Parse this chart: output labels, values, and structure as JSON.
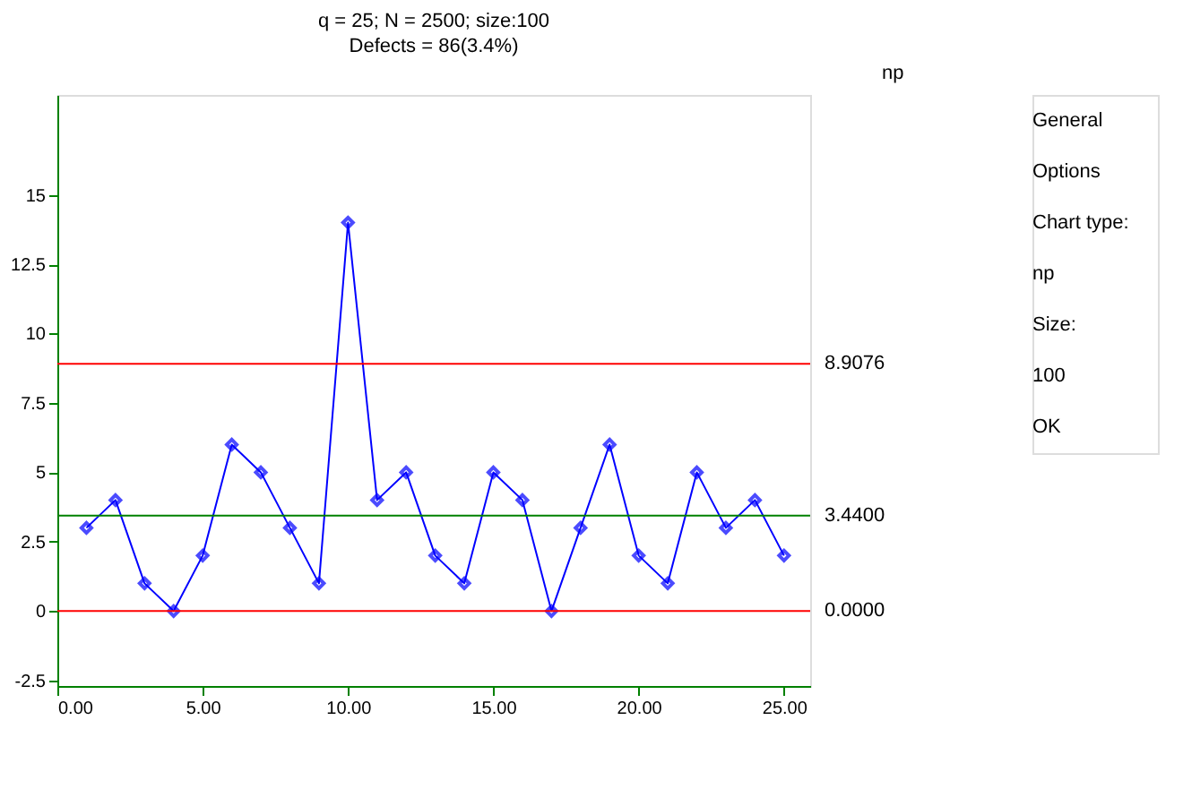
{
  "chart_data": {
    "type": "line",
    "title": "q = 25; N = 2500; size:100",
    "subtitle": "Defects = 86(3.4%)",
    "y2label": "np",
    "x": [
      1,
      2,
      3,
      4,
      5,
      6,
      7,
      8,
      9,
      10,
      11,
      12,
      13,
      14,
      15,
      16,
      17,
      18,
      19,
      20,
      21,
      22,
      23,
      24,
      25
    ],
    "series": [
      {
        "color": "#0000ff",
        "values": [
          3,
          4,
          1,
          0,
          2,
          6,
          5,
          3,
          1,
          14,
          4,
          5,
          2,
          1,
          5,
          4,
          0,
          3,
          6,
          2,
          1,
          5,
          3,
          4,
          2
        ]
      }
    ],
    "marker": "diamond",
    "grid": false,
    "xlim": [
      0,
      25.9
    ],
    "ylim": [
      -2.7,
      18.6
    ],
    "xticks": [
      {
        "value": 0,
        "label": "0.00"
      },
      {
        "value": 5,
        "label": "5.00"
      },
      {
        "value": 10,
        "label": "10.00"
      },
      {
        "value": 15,
        "label": "15.00"
      },
      {
        "value": 20,
        "label": "20.00"
      },
      {
        "value": 25,
        "label": "25.00"
      }
    ],
    "yticks": [
      -2.5,
      0,
      2.5,
      5,
      7.5,
      10,
      12.5,
      15
    ],
    "ref_lines": [
      {
        "axis": "y",
        "value": 8.9076,
        "label": "8.9076",
        "color": "#ff0000"
      },
      {
        "axis": "y",
        "value": 3.44,
        "label": "3.4400",
        "color": "#008000"
      },
      {
        "axis": "y",
        "value": 0,
        "label": "0.0000",
        "color": "#ff0000"
      }
    ],
    "annotations": [
      "General",
      "Options",
      "Chart type:",
      "np",
      "Size:",
      "100",
      "OK"
    ]
  }
}
